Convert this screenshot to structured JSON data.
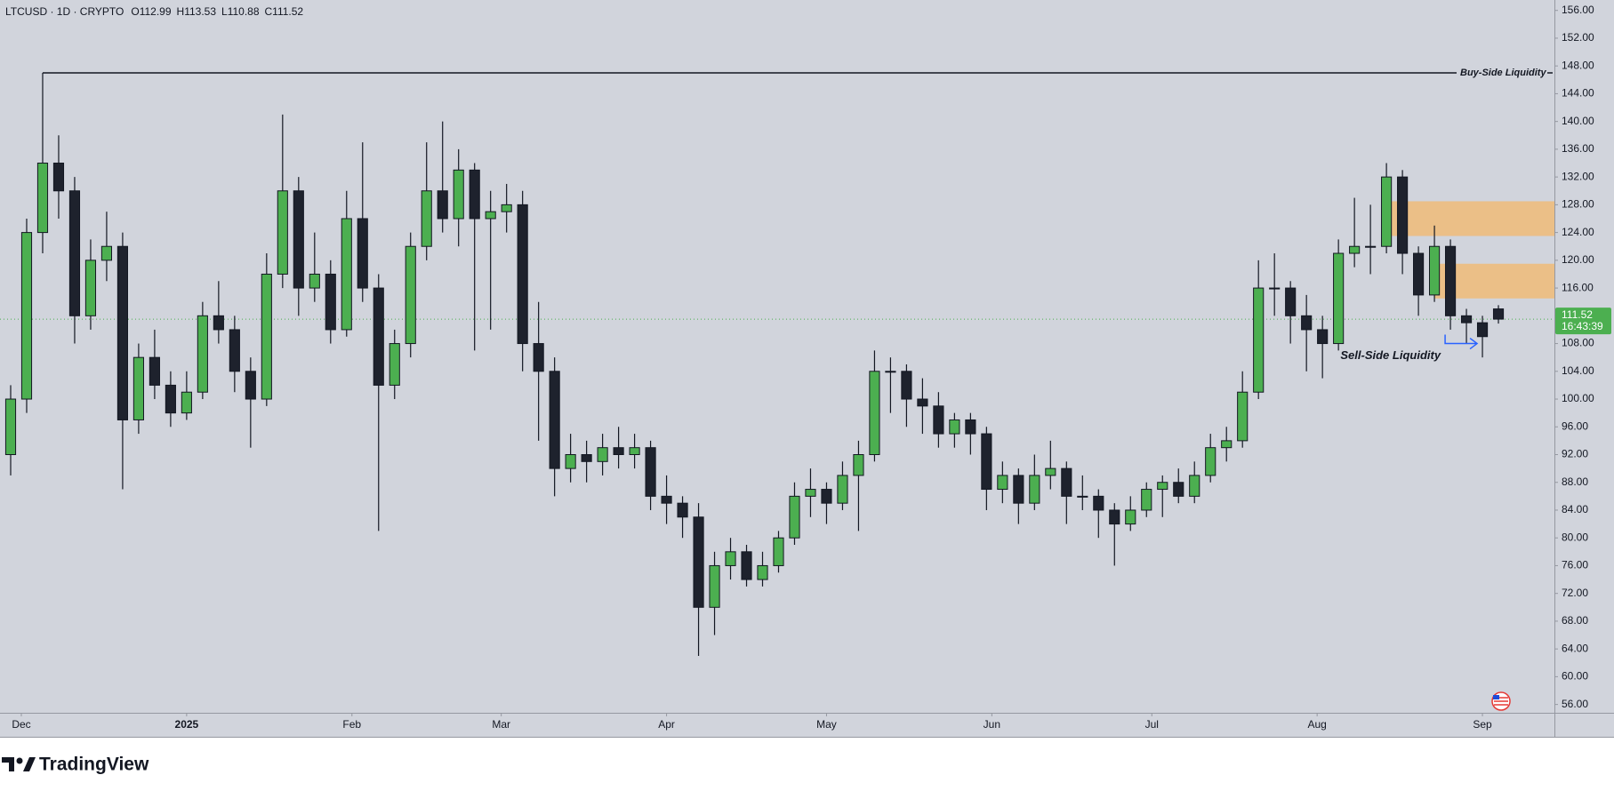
{
  "header": {
    "symbol": "LTCUSD · 1D · CRYPTO",
    "ohlc_letters": [
      "O",
      "H",
      "L",
      "C"
    ]
  },
  "brand": "TradingView",
  "chart_data": {
    "type": "candlestick",
    "x": [
      2,
      5,
      8,
      11,
      14,
      17,
      20,
      23,
      26,
      29,
      32,
      35,
      38,
      41,
      44,
      47,
      50,
      53,
      56,
      59,
      62,
      65,
      68,
      71,
      74,
      77,
      80,
      83,
      86,
      89,
      92,
      95,
      98,
      101,
      104,
      107,
      110,
      113,
      116,
      119,
      122,
      125,
      128,
      131,
      134,
      137,
      140,
      143,
      146,
      149,
      152,
      155,
      158,
      161,
      164,
      167,
      170,
      173,
      176,
      179,
      182,
      185,
      188,
      191,
      194,
      197,
      200,
      203,
      206,
      209,
      212,
      215,
      218,
      221,
      224,
      227,
      230,
      233,
      236,
      239,
      242,
      245,
      248,
      251,
      254,
      257,
      260,
      263,
      266,
      269,
      272,
      275,
      278,
      281
    ],
    "ohlc": [
      [
        92,
        102,
        89,
        100
      ],
      [
        100,
        126,
        98,
        124
      ],
      [
        124,
        147,
        121,
        134
      ],
      [
        134,
        138,
        126,
        130
      ],
      [
        130,
        132,
        108,
        112
      ],
      [
        112,
        123,
        110,
        120
      ],
      [
        120,
        127,
        117,
        122
      ],
      [
        122,
        124,
        87,
        97
      ],
      [
        97,
        108,
        95,
        106
      ],
      [
        106,
        110,
        100,
        102
      ],
      [
        102,
        104,
        96,
        98
      ],
      [
        98,
        104,
        97,
        101
      ],
      [
        101,
        114,
        100,
        112
      ],
      [
        112,
        117,
        108,
        110
      ],
      [
        110,
        112,
        101,
        104
      ],
      [
        104,
        106,
        93,
        100
      ],
      [
        100,
        121,
        99,
        118
      ],
      [
        118,
        141,
        116,
        130
      ],
      [
        130,
        132,
        112,
        116
      ],
      [
        116,
        124,
        114,
        118
      ],
      [
        118,
        120,
        108,
        110
      ],
      [
        110,
        130,
        109,
        126
      ],
      [
        126,
        137,
        114,
        116
      ],
      [
        116,
        118,
        81,
        102
      ],
      [
        102,
        110,
        100,
        108
      ],
      [
        108,
        124,
        106,
        122
      ],
      [
        122,
        137,
        120,
        130
      ],
      [
        130,
        140,
        124,
        126
      ],
      [
        126,
        136,
        122,
        133
      ],
      [
        133,
        134,
        107,
        126
      ],
      [
        126,
        130,
        110,
        127
      ],
      [
        127,
        131,
        124,
        128
      ],
      [
        128,
        130,
        104,
        108
      ],
      [
        108,
        114,
        94,
        104
      ],
      [
        104,
        106,
        86,
        90
      ],
      [
        90,
        95,
        88,
        92
      ],
      [
        92,
        94,
        88,
        91
      ],
      [
        91,
        95,
        89,
        93
      ],
      [
        93,
        96,
        90,
        92
      ],
      [
        92,
        95,
        90,
        93
      ],
      [
        93,
        94,
        84,
        86
      ],
      [
        86,
        89,
        82,
        85
      ],
      [
        85,
        86,
        80,
        83
      ],
      [
        83,
        85,
        63,
        70
      ],
      [
        70,
        78,
        66,
        76
      ],
      [
        76,
        80,
        74,
        78
      ],
      [
        78,
        79,
        73,
        74
      ],
      [
        74,
        78,
        73,
        76
      ],
      [
        76,
        81,
        75,
        80
      ],
      [
        80,
        88,
        79,
        86
      ],
      [
        86,
        90,
        83,
        87
      ],
      [
        87,
        88,
        82,
        85
      ],
      [
        85,
        91,
        84,
        89
      ],
      [
        89,
        94,
        81,
        92
      ],
      [
        92,
        107,
        91,
        104
      ],
      [
        104,
        106,
        98,
        104
      ],
      [
        104,
        105,
        96,
        100
      ],
      [
        100,
        103,
        95,
        99
      ],
      [
        99,
        101,
        93,
        95
      ],
      [
        95,
        98,
        93,
        97
      ],
      [
        97,
        98,
        92,
        95
      ],
      [
        95,
        96,
        84,
        87
      ],
      [
        87,
        91,
        85,
        89
      ],
      [
        89,
        90,
        82,
        85
      ],
      [
        85,
        92,
        84,
        89
      ],
      [
        89,
        94,
        87,
        90
      ],
      [
        90,
        91,
        82,
        86
      ],
      [
        86,
        89,
        84,
        86
      ],
      [
        86,
        87,
        80,
        84
      ],
      [
        84,
        85,
        76,
        82
      ],
      [
        82,
        86,
        81,
        84
      ],
      [
        84,
        88,
        83,
        87
      ],
      [
        87,
        89,
        83,
        88
      ],
      [
        88,
        90,
        85,
        86
      ],
      [
        86,
        91,
        85,
        89
      ],
      [
        89,
        95,
        88,
        93
      ],
      [
        93,
        96,
        91,
        94
      ],
      [
        94,
        104,
        93,
        101
      ],
      [
        101,
        120,
        100,
        116
      ],
      [
        116,
        121,
        112,
        116
      ],
      [
        116,
        117,
        108,
        112
      ],
      [
        112,
        115,
        104,
        110
      ],
      [
        110,
        112,
        103,
        108
      ],
      [
        108,
        123,
        107,
        121
      ],
      [
        121,
        129,
        119,
        122
      ],
      [
        122,
        128,
        118,
        122
      ],
      [
        122,
        134,
        121,
        132
      ],
      [
        132,
        133,
        118,
        121
      ],
      [
        121,
        122,
        112,
        115
      ],
      [
        115,
        125,
        114,
        122
      ],
      [
        122,
        123,
        110,
        112
      ],
      [
        112,
        113,
        108,
        111
      ],
      [
        111,
        112,
        106,
        109
      ],
      [
        112.99,
        113.53,
        110.88,
        111.52
      ]
    ],
    "up_color": "#4caf50",
    "down_color": "#1e222d",
    "xlim": [
      0,
      291.5
    ],
    "ylim": [
      54.8,
      157.5
    ],
    "yticks": [
      {
        "value": 56,
        "label": "56.00"
      },
      {
        "value": 60,
        "label": "60.00"
      },
      {
        "value": 64,
        "label": "64.00"
      },
      {
        "value": 68,
        "label": "68.00"
      },
      {
        "value": 72,
        "label": "72.00"
      },
      {
        "value": 76,
        "label": "76.00"
      },
      {
        "value": 80,
        "label": "80.00"
      },
      {
        "value": 84,
        "label": "84.00"
      },
      {
        "value": 88,
        "label": "88.00"
      },
      {
        "value": 92,
        "label": "92.00"
      },
      {
        "value": 96,
        "label": "96.00"
      },
      {
        "value": 100,
        "label": "100.00"
      },
      {
        "value": 104,
        "label": "104.00"
      },
      {
        "value": 108,
        "label": "108.00"
      },
      {
        "value": 112,
        "label": "112.00"
      },
      {
        "value": 116,
        "label": "116.00"
      },
      {
        "value": 120,
        "label": "120.00"
      },
      {
        "value": 124,
        "label": "124.00"
      },
      {
        "value": 128,
        "label": "128.00"
      },
      {
        "value": 132,
        "label": "132.00"
      },
      {
        "value": 136,
        "label": "136.00"
      },
      {
        "value": 140,
        "label": "140.00"
      },
      {
        "value": 144,
        "label": "144.00"
      },
      {
        "value": 148,
        "label": "148.00"
      },
      {
        "value": 152,
        "label": "152.00"
      },
      {
        "value": 156,
        "label": "156.00"
      }
    ],
    "xticks": [
      {
        "value": 4,
        "label": "Dec"
      },
      {
        "value": 35,
        "label": "2025"
      },
      {
        "value": 66,
        "label": "Feb"
      },
      {
        "value": 94,
        "label": "Mar"
      },
      {
        "value": 125,
        "label": "Apr"
      },
      {
        "value": 155,
        "label": "May"
      },
      {
        "value": 186,
        "label": "Jun"
      },
      {
        "value": 216,
        "label": "Jul"
      },
      {
        "value": 247,
        "label": "Aug"
      },
      {
        "value": 278,
        "label": "Sep"
      }
    ],
    "grid": false,
    "buy_side": {
      "text": "Buy-Side Liquidity",
      "value": 147,
      "from": 8
    },
    "sell_side": {
      "text": "Sell-Side Liquidity",
      "value": 108,
      "from": 271,
      "to": 277
    },
    "zones": [
      {
        "from": 260,
        "low": 123.5,
        "high": 128.5
      },
      {
        "from": 269,
        "low": 114.5,
        "high": 119.5
      }
    ],
    "zone_color": "#f3b86b",
    "price_tag_color": "#4caf50",
    "countdown": "16:43:39"
  }
}
